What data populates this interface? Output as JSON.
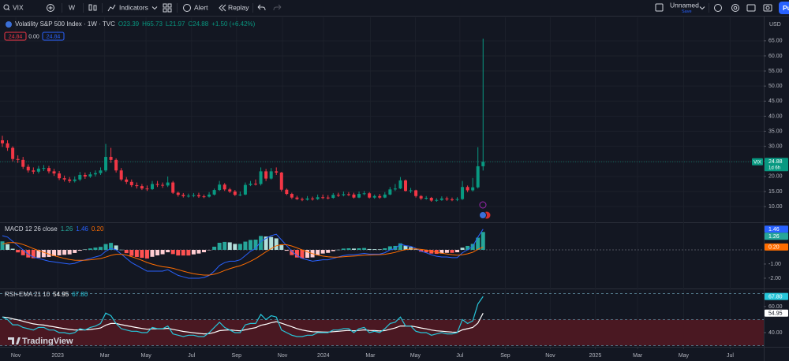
{
  "toolbar": {
    "symbol": "VIX",
    "interval": "W",
    "indicators": "Indicators",
    "alert": "Alert",
    "replay": "Replay",
    "layout_name": "Unnamed",
    "save": "Save",
    "publish": "Pu"
  },
  "legend": {
    "ohlc": [
      "O23.39",
      "H65.73",
      "L21.97",
      "C24.88",
      "+1.50 (+6.42%)"
    ],
    "bid": "24.84",
    "spread": "0.00",
    "ask": "24.84"
  },
  "watermark": "TradingView",
  "chart_data": [
    {
      "type": "candlestick",
      "title": "Volatility S&P 500 Index · 1W · TVC",
      "symbol": "VIX",
      "currency": "USD",
      "last_label": "24.88",
      "countdown": "1d 6h",
      "up_color": "#089981",
      "down_color": "#f23645",
      "open": [
        32,
        31,
        29.5,
        25.8,
        25.5,
        23.2,
        22,
        21.6,
        22.6,
        22.8,
        21.7,
        21,
        19.4,
        19,
        18.5,
        19,
        20.5,
        20,
        20.7,
        21.1,
        22,
        26.5,
        25.5,
        22,
        19,
        18.2,
        17.1,
        16.8,
        16,
        15.8,
        17.5,
        17.2,
        17,
        18,
        14.6,
        13.9,
        13.5,
        13.6,
        13.8,
        13.4,
        13.3,
        14,
        15.5,
        17.3,
        15.7,
        15,
        13.9,
        14,
        17.2,
        17.6,
        17.5,
        21.7,
        19.3,
        21.7,
        21.3,
        15.6,
        14.2,
        13,
        12.5,
        12.3,
        12.7,
        12.5,
        13.1,
        13,
        12.9,
        13.9,
        13.8,
        14.1,
        14,
        13,
        14.2,
        14.4,
        13,
        13.5,
        13,
        14,
        15.7,
        16,
        18.7,
        15.2,
        15.4,
        13.5,
        12.7,
        12.9,
        12,
        12.2,
        12.7,
        12.4,
        12.3,
        12.5,
        16.5,
        15.4,
        16.4,
        23.39
      ],
      "high": [
        33.5,
        32,
        30,
        27,
        26.5,
        24,
        23,
        23.5,
        23.8,
        23.5,
        22.5,
        21.8,
        20.3,
        19.8,
        20,
        21.5,
        21.3,
        21.5,
        22,
        23,
        30.8,
        29.5,
        26,
        22.8,
        19.8,
        19,
        18,
        17.5,
        17,
        18.5,
        18.5,
        18,
        20,
        18.5,
        15,
        14.5,
        14.3,
        14.5,
        14.6,
        14,
        14.8,
        16,
        18.5,
        17.8,
        16.2,
        15.5,
        15,
        18,
        18.5,
        19,
        23,
        22.5,
        22.8,
        23,
        21.5,
        16,
        14.6,
        13.6,
        13,
        13.5,
        13.3,
        14,
        14,
        13.8,
        14.5,
        14.6,
        15,
        14.8,
        14.6,
        15,
        15.2,
        14.8,
        14,
        14.2,
        14.8,
        16.5,
        17.5,
        19.8,
        19,
        16.2,
        15.6,
        13.8,
        13.5,
        13.2,
        12.8,
        13.4,
        13.3,
        13,
        13.1,
        18.5,
        17,
        19.5,
        29.7,
        65.73
      ],
      "low": [
        29.8,
        28.5,
        25,
        24.5,
        22.5,
        21.3,
        20.8,
        21,
        21.8,
        21,
        20.2,
        18.8,
        18.3,
        17.9,
        18,
        18.5,
        19.2,
        19.5,
        20,
        20.5,
        21.5,
        24.5,
        21.3,
        18.5,
        17.5,
        16.5,
        16,
        15.5,
        15.2,
        15.5,
        16.5,
        16.2,
        16.5,
        14.2,
        13.3,
        13,
        13,
        13.1,
        12.9,
        12.8,
        13,
        13.7,
        15.2,
        15.2,
        14.5,
        13.5,
        13.5,
        13.8,
        16.8,
        17,
        17,
        18.5,
        19,
        20.5,
        15,
        13.8,
        12.5,
        12.2,
        11.8,
        12,
        12,
        12.2,
        12.5,
        12.4,
        12.6,
        13.2,
        13.4,
        13.5,
        12.7,
        12.8,
        13.8,
        12.7,
        12.6,
        12.6,
        12.8,
        13.8,
        15.2,
        15.8,
        15,
        14.5,
        13,
        12.2,
        12.3,
        11.6,
        11.6,
        11.9,
        11.9,
        11.8,
        11.8,
        12.2,
        14.8,
        15,
        16,
        21.97
      ],
      "close": [
        31,
        29.5,
        25.8,
        25.5,
        23.2,
        22,
        21.6,
        22.6,
        22.8,
        21.7,
        21,
        19.4,
        19,
        18.5,
        19,
        20.5,
        20,
        20.7,
        21.1,
        22,
        26.5,
        25.5,
        22,
        19,
        18.2,
        17.1,
        16.8,
        16,
        15.8,
        17.5,
        17.2,
        17,
        18,
        14.6,
        13.9,
        13.5,
        13.6,
        13.8,
        13.4,
        13.3,
        14,
        15.5,
        17.3,
        15.7,
        15,
        13.9,
        14,
        17.2,
        17.6,
        17.5,
        21.7,
        19.3,
        21.7,
        21.3,
        15.6,
        14.2,
        13,
        12.5,
        12.3,
        12.7,
        12.5,
        13.1,
        13,
        12.9,
        13.9,
        13.8,
        14.1,
        14,
        13,
        14.2,
        14.4,
        13,
        13.5,
        13,
        14,
        15.7,
        16,
        18.7,
        15.2,
        15.4,
        13.5,
        12.7,
        12.9,
        12,
        12.2,
        12.7,
        12.4,
        12.3,
        12.5,
        16.5,
        15.4,
        16.4,
        23.39,
        24.88
      ],
      "xlim": [
        -0.46,
        147.3
      ],
      "xticks": [
        {
          "value": 2.6,
          "label": "Nov"
        },
        {
          "value": 10.7,
          "label": "2023"
        },
        {
          "value": 19.8,
          "label": "Mar"
        },
        {
          "value": 27.8,
          "label": "May"
        },
        {
          "value": 36.6,
          "label": "Jul"
        },
        {
          "value": 45.3,
          "label": "Sep"
        },
        {
          "value": 54.2,
          "label": "Nov"
        },
        {
          "value": 62.1,
          "label": "2024"
        },
        {
          "value": 71.2,
          "label": "Mar"
        },
        {
          "value": 79.9,
          "label": "May"
        },
        {
          "value": 88.5,
          "label": "Jul"
        },
        {
          "value": 97.3,
          "label": "Sep"
        },
        {
          "value": 106,
          "label": "Nov"
        },
        {
          "value": 114.7,
          "label": "2025"
        },
        {
          "value": 122.9,
          "label": "Mar"
        },
        {
          "value": 131.8,
          "label": "May"
        },
        {
          "value": 140.8,
          "label": "Jul"
        }
      ],
      "ylim": [
        4.8,
        72.8
      ],
      "yticks": [
        {
          "value": 10,
          "label": "10.00"
        },
        {
          "value": 15,
          "label": "15.00"
        },
        {
          "value": 20,
          "label": "20.00"
        },
        {
          "value": 25,
          "label": "25.00"
        },
        {
          "value": 30,
          "label": "30.00"
        },
        {
          "value": 35,
          "label": "35.00"
        },
        {
          "value": 40,
          "label": "40.00"
        },
        {
          "value": 45,
          "label": "45.00"
        },
        {
          "value": 50,
          "label": "50.00"
        },
        {
          "value": 55,
          "label": "55.00"
        },
        {
          "value": 60,
          "label": "60.00"
        },
        {
          "value": 65,
          "label": "65.00"
        }
      ],
      "grid": true
    },
    {
      "type": "macd",
      "title": "MACD 12 26 close",
      "ylim": [
        -2.67,
        1.89
      ],
      "yticks": [
        {
          "value": -1,
          "label": "-1.00"
        },
        {
          "value": -2,
          "label": "-2.00"
        }
      ],
      "series": [
        {
          "color": "#26a69a",
          "fade_color": "#b2dfdb",
          "neg_color": "#ff5252",
          "neg_fade_color": "#ffcdd2",
          "last_label": "1.26",
          "values": [
            0.6,
            0.4,
            0.08,
            -0.18,
            -0.38,
            -0.54,
            -0.59,
            -0.55,
            -0.52,
            -0.5,
            -0.44,
            -0.39,
            -0.35,
            -0.32,
            -0.22,
            -0.06,
            0.03,
            0.1,
            0.16,
            0.21,
            0.41,
            0.49,
            0.31,
            0.01,
            -0.23,
            -0.42,
            -0.5,
            -0.56,
            -0.61,
            -0.49,
            -0.39,
            -0.31,
            -0.17,
            -0.3,
            -0.4,
            -0.4,
            -0.4,
            -0.32,
            -0.26,
            -0.17,
            -0.02,
            0.22,
            0.5,
            0.56,
            0.53,
            0.42,
            0.42,
            0.58,
            0.7,
            0.72,
            0.98,
            0.94,
            0.91,
            0.81,
            0.33,
            -0.06,
            -0.37,
            -0.54,
            -0.6,
            -0.56,
            -0.53,
            -0.38,
            -0.26,
            -0.21,
            -0.09,
            0.01,
            0.09,
            0.11,
            0.09,
            0.11,
            0.13,
            0.06,
            0.05,
            0.04,
            0.11,
            0.25,
            0.28,
            0.46,
            0.29,
            0.19,
            0.03,
            -0.13,
            -0.18,
            -0.26,
            -0.28,
            -0.26,
            -0.21,
            -0.21,
            -0.17,
            0.15,
            0.28,
            0.42,
            0.86,
            1.26
          ]
        },
        {
          "color": "#2962ff",
          "last_label": "1.46",
          "values": [
            1.0,
            0.9,
            0.6,
            0.3,
            0.0,
            -0.3,
            -0.5,
            -0.6,
            -0.7,
            -0.8,
            -0.85,
            -0.9,
            -0.95,
            -1.0,
            -0.95,
            -0.8,
            -0.7,
            -0.6,
            -0.5,
            -0.4,
            -0.1,
            0.1,
            0.0,
            -0.3,
            -0.6,
            -0.9,
            -1.1,
            -1.3,
            -1.5,
            -1.5,
            -1.5,
            -1.5,
            -1.4,
            -1.6,
            -1.8,
            -1.9,
            -2.0,
            -2.0,
            -2.0,
            -1.95,
            -1.8,
            -1.5,
            -1.1,
            -0.9,
            -0.8,
            -0.8,
            -0.7,
            -0.4,
            -0.1,
            0.1,
            0.6,
            0.8,
            1.0,
            1.1,
            0.7,
            0.3,
            -0.1,
            -0.4,
            -0.6,
            -0.7,
            -0.8,
            -0.75,
            -0.7,
            -0.7,
            -0.6,
            -0.5,
            -0.4,
            -0.35,
            -0.35,
            -0.3,
            -0.25,
            -0.3,
            -0.3,
            -0.3,
            -0.2,
            0.0,
            0.1,
            0.4,
            0.3,
            0.25,
            0.1,
            -0.1,
            -0.2,
            -0.35,
            -0.45,
            -0.5,
            -0.5,
            -0.55,
            -0.55,
            -0.2,
            0.0,
            0.25,
            0.9,
            1.46
          ]
        },
        {
          "color": "#ff6d00",
          "last_label": "0.20",
          "values": [
            0.4,
            0.5,
            0.52,
            0.48,
            0.38,
            0.24,
            0.09,
            -0.05,
            -0.18,
            -0.3,
            -0.41,
            -0.51,
            -0.6,
            -0.68,
            -0.73,
            -0.74,
            -0.73,
            -0.7,
            -0.66,
            -0.61,
            -0.51,
            -0.39,
            -0.31,
            -0.31,
            -0.37,
            -0.48,
            -0.6,
            -0.74,
            -0.89,
            -1.01,
            -1.11,
            -1.19,
            -1.23,
            -1.3,
            -1.4,
            -1.5,
            -1.6,
            -1.68,
            -1.74,
            -1.78,
            -1.78,
            -1.72,
            -1.6,
            -1.46,
            -1.33,
            -1.22,
            -1.12,
            -0.98,
            -0.8,
            -0.62,
            -0.38,
            -0.14,
            0.09,
            0.29,
            0.37,
            0.36,
            0.27,
            0.14,
            0.0,
            -0.14,
            -0.27,
            -0.37,
            -0.44,
            -0.49,
            -0.51,
            -0.51,
            -0.49,
            -0.46,
            -0.44,
            -0.41,
            -0.38,
            -0.36,
            -0.35,
            -0.34,
            -0.31,
            -0.25,
            -0.18,
            -0.06,
            0.01,
            0.06,
            0.07,
            0.03,
            -0.02,
            -0.09,
            -0.17,
            -0.24,
            -0.29,
            -0.34,
            -0.38,
            -0.35,
            -0.28,
            -0.17,
            0.04,
            0.2
          ]
        }
      ]
    },
    {
      "type": "line",
      "title": "RSI+EMA 21 10",
      "ylim": [
        29.1,
        73.3
      ],
      "yticks": [
        {
          "value": 60,
          "label": "60.00"
        },
        {
          "value": 40,
          "label": "40.00"
        }
      ],
      "levels": [
        70,
        50,
        30
      ],
      "level_color": "#5d8a9e",
      "fill_color": "#4a1822",
      "series": [
        {
          "color": "#ffffff",
          "last_label": "54.95",
          "values": [
            52,
            51.6,
            50.6,
            49.8,
            48.7,
            47.7,
            46.7,
            46.2,
            45.8,
            45.1,
            44.5,
            43.7,
            43.1,
            42.4,
            42,
            42.1,
            42.1,
            42.4,
            42.9,
            43.6,
            45.7,
            47,
            47,
            46.1,
            45.4,
            44.6,
            43.9,
            43.2,
            42.6,
            42.9,
            42.9,
            42.9,
            43.3,
            42.5,
            41.7,
            40.9,
            40.4,
            39.9,
            39.4,
            39,
            39.2,
            40.1,
            41.5,
            41.9,
            42.1,
            41.7,
            41.4,
            42.2,
            43.1,
            43.8,
            45.6,
            46.4,
            47.6,
            48.4,
            47.2,
            45.9,
            44.5,
            43.1,
            42,
            41.3,
            40.7,
            40.6,
            40.5,
            40.4,
            40.7,
            41,
            41.4,
            41.7,
            41.4,
            41.7,
            42.1,
            41.7,
            41.6,
            41.3,
            41.6,
            42.6,
            43.6,
            45.1,
            45.1,
            45.1,
            44.4,
            43.6,
            42.9,
            42,
            41.4,
            41.1,
            40.7,
            40.4,
            40.3,
            42.1,
            43,
            44,
            47.3,
            54.95
          ]
        },
        {
          "color": "#26c6da",
          "last_label": "67.80",
          "values": [
            52,
            50,
            46,
            46,
            44,
            43,
            42,
            44,
            44,
            42,
            42,
            40,
            40,
            39,
            40,
            43,
            42,
            44,
            45,
            47,
            55,
            53,
            47,
            43,
            42,
            41,
            41,
            40,
            40,
            44,
            43,
            43,
            45,
            39,
            38,
            37,
            38,
            38,
            37,
            37,
            40,
            44,
            48,
            44,
            42,
            40,
            40,
            46,
            47,
            47,
            54,
            50,
            53,
            52,
            42,
            40,
            38,
            37,
            37,
            38,
            38,
            40,
            40,
            40,
            42,
            42,
            43,
            43,
            40,
            43,
            44,
            40,
            41,
            40,
            43,
            47,
            48,
            52,
            45,
            45,
            41,
            40,
            40,
            38,
            39,
            40,
            39,
            39,
            40,
            50,
            47,
            49,
            62,
            67.8
          ]
        }
      ]
    }
  ]
}
